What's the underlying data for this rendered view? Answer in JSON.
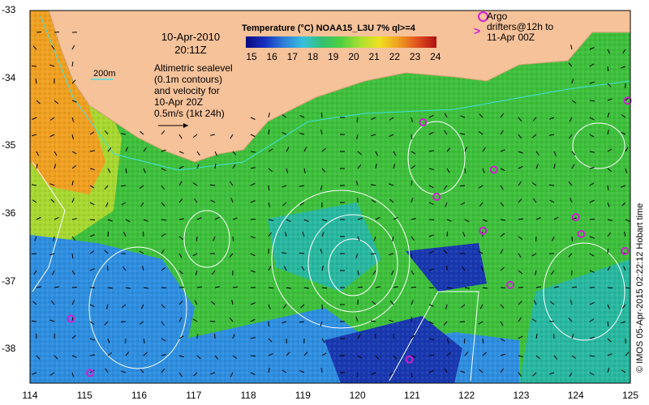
{
  "header": {
    "date_line1": "10-Apr-2010",
    "date_line2": "20:11Z",
    "legend_title": "Temperature (°C) NOAA15_L3U 7% ql>=4",
    "colorbar_ticks": [
      "15",
      "16",
      "17",
      "18",
      "19",
      "20",
      "21",
      "22",
      "23",
      "24"
    ],
    "argo_line1": "Argo",
    "argo_line2": "drifters@12h to",
    "argo_line3": "11-Apr 00Z",
    "sealevel_lines": [
      "Altimetric sealevel",
      "(0.1m contours)",
      "and velocity for",
      "10-Apr 20Z",
      "0.5m/s (1kt 24h)"
    ],
    "contour_label": "200m",
    "credit": "© IMOS 05-Apr-2015 02:22:12 Hobart time"
  },
  "axes": {
    "x_ticks": [
      "114",
      "115",
      "116",
      "117",
      "118",
      "119",
      "120",
      "121",
      "122",
      "123",
      "124",
      "125"
    ],
    "y_ticks": [
      "-33",
      "-34",
      "-35",
      "-36",
      "-37",
      "-38"
    ]
  },
  "colors": {
    "land": "#f6c29a",
    "argo": "#d020d0",
    "contour": "#ffffff",
    "shelf_contour": "#40e0e0"
  },
  "chart_data": {
    "type": "heatmap",
    "xlim": [
      114,
      125
    ],
    "ylim": [
      -38.5,
      -33
    ],
    "colorbar_range": [
      15,
      24
    ],
    "argo_positions": [
      [
        121.2,
        -34.65
      ],
      [
        122.5,
        -35.35
      ],
      [
        121.45,
        -35.75
      ],
      [
        122.3,
        -36.25
      ],
      [
        124.0,
        -36.05
      ],
      [
        124.1,
        -36.3
      ],
      [
        124.9,
        -36.55
      ],
      [
        122.8,
        -37.05
      ],
      [
        114.75,
        -37.55
      ],
      [
        115.1,
        -38.35
      ],
      [
        120.95,
        -38.15
      ],
      [
        124.95,
        -34.33
      ]
    ]
  }
}
